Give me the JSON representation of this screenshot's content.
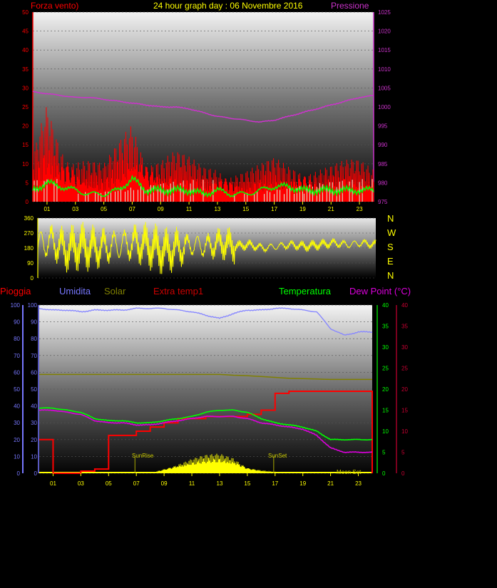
{
  "header": {
    "title": "24 hour graph day : 06 Novembre 2016",
    "left_label": "Forza vento)",
    "right_label": "Pressione"
  },
  "lower_labels": {
    "pioggia": "Pioggia",
    "umidita": "Umidita",
    "solar": "Solar",
    "extra": "Extra temp1",
    "temperatura": "Temperatura",
    "dewpoint": "Dew Point (°C)"
  },
  "direction_letters": [
    "N",
    "W",
    "S",
    "E",
    "N"
  ],
  "annotations": {
    "sunrise": "SunRise",
    "sunset": "SunSet",
    "moonset": "Moon Set"
  },
  "colors": {
    "wind": "#ff0000",
    "avg_wind": "#00ff00",
    "pressure": "#cc33cc",
    "direction": "#ffff00",
    "humidity": "#8888ff",
    "solar": "#ffff00",
    "temperature": "#00ff00",
    "dewpoint": "#dd00dd",
    "extra": "#ff0000",
    "solar_ref": "#808000"
  },
  "chart_data": [
    {
      "type": "line",
      "title": "24 hour graph day : 06 Novembre 2016",
      "xlabel": "",
      "ylabel": "Forza vento)",
      "y2label": "Pressione",
      "x_ticks": [
        "01",
        "03",
        "05",
        "07",
        "09",
        "11",
        "13",
        "15",
        "17",
        "19",
        "21",
        "23"
      ],
      "ylim": [
        0,
        50
      ],
      "y_ticks": [
        0,
        5,
        10,
        15,
        20,
        25,
        30,
        35,
        40,
        45,
        50
      ],
      "y2lim": [
        975,
        1025
      ],
      "y2_ticks": [
        975,
        980,
        985,
        990,
        995,
        1000,
        1005,
        1010,
        1015,
        1020,
        1025
      ],
      "x": [
        0,
        1,
        2,
        3,
        4,
        5,
        6,
        7,
        8,
        9,
        10,
        11,
        12,
        13,
        14,
        15,
        16,
        17,
        18,
        19,
        20,
        21,
        22,
        23,
        24
      ],
      "series": [
        {
          "axis": "y2",
          "values": [
            1004,
            1003.5,
            1003,
            1002.5,
            1002.5,
            1002,
            1001.5,
            1001,
            1000.5,
            1000,
            1000,
            999.5,
            998.5,
            997.5,
            997,
            996.5,
            996,
            996.5,
            997.5,
            998.5,
            999.5,
            1000.5,
            1001.5,
            1002.5,
            1003
          ]
        },
        {
          "axis": "y",
          "values": [
            12,
            28,
            18,
            14,
            12,
            10,
            16,
            24,
            15,
            13,
            14,
            12,
            10,
            11,
            9,
            9,
            10,
            12,
            11,
            11,
            10,
            10,
            11,
            12,
            11
          ]
        },
        {
          "axis": "y",
          "values": [
            3,
            5,
            4,
            3,
            2,
            2,
            3,
            6,
            3,
            3,
            3,
            3,
            2,
            3,
            2,
            2,
            3,
            4,
            4,
            3,
            3,
            3,
            3,
            3,
            3
          ]
        }
      ]
    },
    {
      "type": "line",
      "xlabel": "",
      "ylabel": "",
      "ylim": [
        0,
        360
      ],
      "y_ticks": [
        0,
        90,
        180,
        270,
        360
      ],
      "x": [
        0,
        1,
        2,
        3,
        4,
        5,
        6,
        7,
        8,
        9,
        10,
        11,
        12,
        13,
        14,
        15,
        16,
        17,
        18,
        19,
        20,
        21,
        22,
        23,
        24
      ],
      "series": [
        {
          "values": [
            200,
            220,
            170,
            190,
            180,
            190,
            200,
            210,
            190,
            160,
            180,
            200,
            190,
            210,
            190,
            200,
            180,
            190,
            200,
            190,
            200,
            210,
            200,
            210,
            200
          ]
        }
      ]
    },
    {
      "type": "line",
      "xlabel": "",
      "ylabel": "Pioggia",
      "x_ticks": [
        "01",
        "03",
        "05",
        "07",
        "09",
        "11",
        "13",
        "15",
        "17",
        "19",
        "21",
        "23"
      ],
      "ylim": [
        0,
        100
      ],
      "y_ticks": [
        0,
        10,
        20,
        30,
        40,
        50,
        60,
        70,
        80,
        90,
        100
      ],
      "y2lim": [
        0,
        40
      ],
      "y2_ticks": [
        0,
        5,
        10,
        15,
        20,
        25,
        30,
        35,
        40
      ],
      "x": [
        0,
        1,
        2,
        3,
        4,
        5,
        6,
        7,
        8,
        9,
        10,
        11,
        12,
        13,
        14,
        15,
        16,
        17,
        18,
        19,
        20,
        21,
        22,
        23,
        24
      ],
      "series": [
        {
          "axis": "y",
          "values": [
            98,
            97,
            97,
            96,
            97,
            97,
            97,
            98,
            98,
            98,
            97,
            96,
            94,
            92,
            95,
            97,
            97,
            98,
            98,
            97,
            96,
            86,
            82,
            84,
            84
          ]
        },
        {
          "axis": "y2",
          "values": [
            15.5,
            15.5,
            15,
            14.5,
            13,
            12.5,
            12.5,
            12,
            12,
            12.5,
            13,
            13.5,
            14.5,
            15,
            15,
            14.5,
            13,
            12,
            11.5,
            11,
            10,
            8,
            8,
            8,
            8
          ]
        },
        {
          "axis": "y2",
          "values": [
            15,
            15,
            14.5,
            14,
            12.5,
            12,
            12,
            11.5,
            11.5,
            12,
            12.5,
            13,
            13.5,
            13.5,
            13.5,
            13,
            12,
            11.5,
            11,
            10.5,
            9,
            6,
            5,
            5,
            5
          ]
        },
        {
          "axis": "y2",
          "values": [
            8,
            0,
            0,
            0.5,
            1,
            9,
            9,
            10,
            11,
            12,
            13,
            13,
            13.5,
            13.5,
            13.5,
            14,
            15,
            19,
            19.5,
            19.5,
            19.5,
            19.5,
            19.5,
            19.5,
            19.5
          ]
        },
        {
          "axis": "y2",
          "values": [
            23.5,
            23.5,
            23.5,
            23.5,
            23.5,
            23.5,
            23.5,
            23.5,
            23.5,
            23.5,
            23.5,
            23.5,
            23.5,
            23.5,
            23.3,
            23.2,
            23,
            22.8,
            22.6,
            22.5,
            22.4,
            22.3,
            22.3,
            22.3,
            22.3
          ]
        },
        {
          "axis": "y",
          "values": [
            0,
            0,
            0,
            0,
            0,
            0,
            0,
            0,
            0,
            3,
            6,
            9,
            11,
            12,
            10,
            4,
            2,
            1,
            0,
            0,
            0,
            0,
            0,
            0,
            0
          ]
        }
      ]
    }
  ]
}
